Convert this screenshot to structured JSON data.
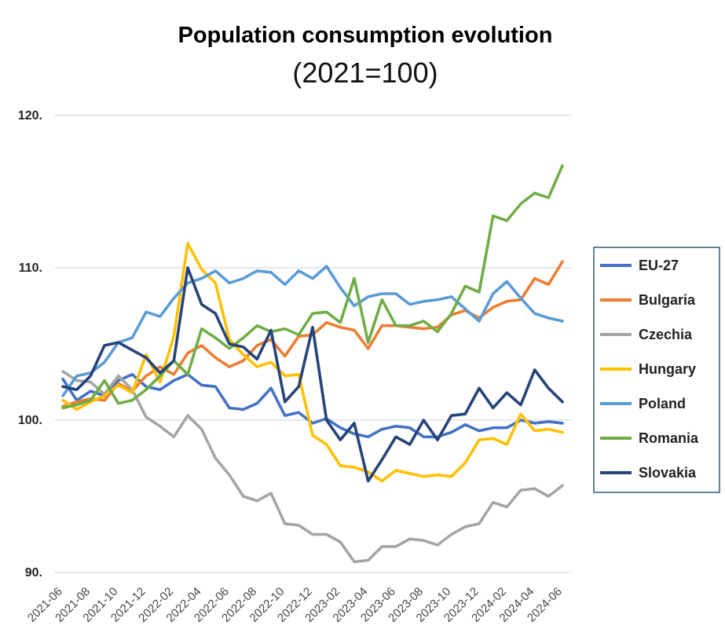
{
  "chart_data": {
    "type": "line",
    "title": "Population consumption evolution",
    "subtitle": "(2021=100)",
    "xlabel": "",
    "ylabel": "",
    "ylim": [
      90,
      120
    ],
    "yticks": [
      90,
      100,
      110,
      120
    ],
    "ytick_labels": [
      "90.",
      "100.",
      "110.",
      "120."
    ],
    "grid": true,
    "legend_position": "right",
    "x": [
      "2021-06",
      "2021-07",
      "2021-08",
      "2021-09",
      "2021-10",
      "2021-11",
      "2021-12",
      "2022-01",
      "2022-02",
      "2022-03",
      "2022-04",
      "2022-05",
      "2022-06",
      "2022-07",
      "2022-08",
      "2022-09",
      "2022-10",
      "2022-11",
      "2022-12",
      "2023-01",
      "2023-02",
      "2023-03",
      "2023-04",
      "2023-05",
      "2023-06",
      "2023-07",
      "2023-08",
      "2023-09",
      "2023-10",
      "2023-11",
      "2023-12",
      "2024-01",
      "2024-02",
      "2024-03",
      "2024-04",
      "2024-05",
      "2024-06"
    ],
    "xtick_labels": [
      "2021-06",
      "2021-08",
      "2021-10",
      "2021-12",
      "2022-02",
      "2022-04",
      "2022-06",
      "2022-08",
      "2022-10",
      "2022-12",
      "2023-02",
      "2023-04",
      "2023-06",
      "2023-08",
      "2023-10",
      "2023-12",
      "2024-02",
      "2024-04",
      "2024-06"
    ],
    "series": [
      {
        "name": "EU-27",
        "color": "#4472C4",
        "values": [
          102.7,
          101.3,
          101.9,
          101.6,
          102.6,
          103.0,
          102.2,
          102.0,
          102.6,
          103.0,
          102.3,
          102.2,
          100.8,
          100.7,
          101.1,
          102.1,
          100.3,
          100.5,
          99.8,
          100.1,
          99.5,
          99.1,
          98.9,
          99.4,
          99.6,
          99.5,
          98.9,
          98.9,
          99.2,
          99.7,
          99.3,
          99.5,
          99.5,
          100.0,
          99.8,
          99.9,
          99.8
        ]
      },
      {
        "name": "Bulgaria",
        "color": "#ED7D31",
        "values": [
          100.9,
          101.2,
          101.4,
          101.3,
          102.4,
          101.9,
          102.9,
          103.5,
          103.0,
          104.4,
          104.9,
          104.1,
          103.5,
          103.9,
          104.9,
          105.3,
          104.2,
          105.5,
          105.6,
          106.4,
          106.1,
          105.9,
          104.7,
          106.2,
          106.2,
          106.1,
          106.0,
          106.1,
          106.9,
          107.2,
          106.7,
          107.4,
          107.8,
          107.9,
          109.3,
          108.9,
          110.4
        ]
      },
      {
        "name": "Czechia",
        "color": "#A5A5A5",
        "values": [
          103.2,
          102.6,
          102.5,
          101.7,
          102.9,
          102.0,
          100.2,
          99.6,
          98.9,
          100.3,
          99.4,
          97.5,
          96.4,
          95.0,
          94.7,
          95.2,
          93.2,
          93.1,
          92.5,
          92.5,
          92.0,
          90.7,
          90.8,
          91.7,
          91.7,
          92.2,
          92.1,
          91.8,
          92.5,
          93.0,
          93.2,
          94.6,
          94.3,
          95.4,
          95.5,
          95.0,
          95.7
        ]
      },
      {
        "name": "Hungary",
        "color": "#FFC000",
        "values": [
          101.3,
          100.7,
          101.2,
          101.6,
          102.3,
          101.8,
          104.3,
          102.5,
          105.5,
          111.6,
          109.9,
          109.0,
          105.3,
          104.3,
          103.5,
          103.8,
          102.9,
          103.0,
          99.0,
          98.4,
          97.0,
          96.9,
          96.6,
          96.0,
          96.7,
          96.5,
          96.3,
          96.4,
          96.3,
          97.2,
          98.7,
          98.8,
          98.4,
          100.4,
          99.3,
          99.4,
          99.2
        ]
      },
      {
        "name": "Poland",
        "color": "#5B9BD5",
        "values": [
          101.6,
          102.9,
          103.1,
          103.8,
          105.1,
          105.4,
          107.1,
          106.8,
          108.0,
          109.0,
          109.3,
          109.8,
          109.0,
          109.3,
          109.8,
          109.7,
          108.9,
          109.8,
          109.3,
          110.1,
          108.7,
          107.5,
          108.1,
          108.3,
          108.3,
          107.6,
          107.8,
          107.9,
          108.1,
          107.3,
          106.5,
          108.3,
          109.1,
          108.0,
          107.0,
          106.7,
          106.5
        ]
      },
      {
        "name": "Romania",
        "color": "#70AD47",
        "values": [
          100.8,
          101.0,
          101.3,
          102.6,
          101.1,
          101.3,
          102.0,
          102.9,
          103.9,
          103.0,
          106.0,
          105.4,
          104.7,
          105.4,
          106.2,
          105.8,
          106.0,
          105.6,
          107.0,
          107.1,
          106.4,
          109.3,
          105.1,
          107.9,
          106.2,
          106.2,
          106.5,
          105.8,
          107.0,
          108.8,
          108.4,
          113.4,
          113.1,
          114.2,
          114.9,
          114.6,
          116.7
        ]
      },
      {
        "name": "Slovakia",
        "color": "#264478",
        "values": [
          102.2,
          102.0,
          102.9,
          104.9,
          105.1,
          104.6,
          104.1,
          103.1,
          103.9,
          110.0,
          107.6,
          107.0,
          105.0,
          104.8,
          104.0,
          105.9,
          101.2,
          102.2,
          106.1,
          100.0,
          98.7,
          99.8,
          96.0,
          97.4,
          98.9,
          98.4,
          100.0,
          98.7,
          100.3,
          100.4,
          102.1,
          100.8,
          101.8,
          101.0,
          103.3,
          102.1,
          101.2
        ]
      }
    ]
  }
}
